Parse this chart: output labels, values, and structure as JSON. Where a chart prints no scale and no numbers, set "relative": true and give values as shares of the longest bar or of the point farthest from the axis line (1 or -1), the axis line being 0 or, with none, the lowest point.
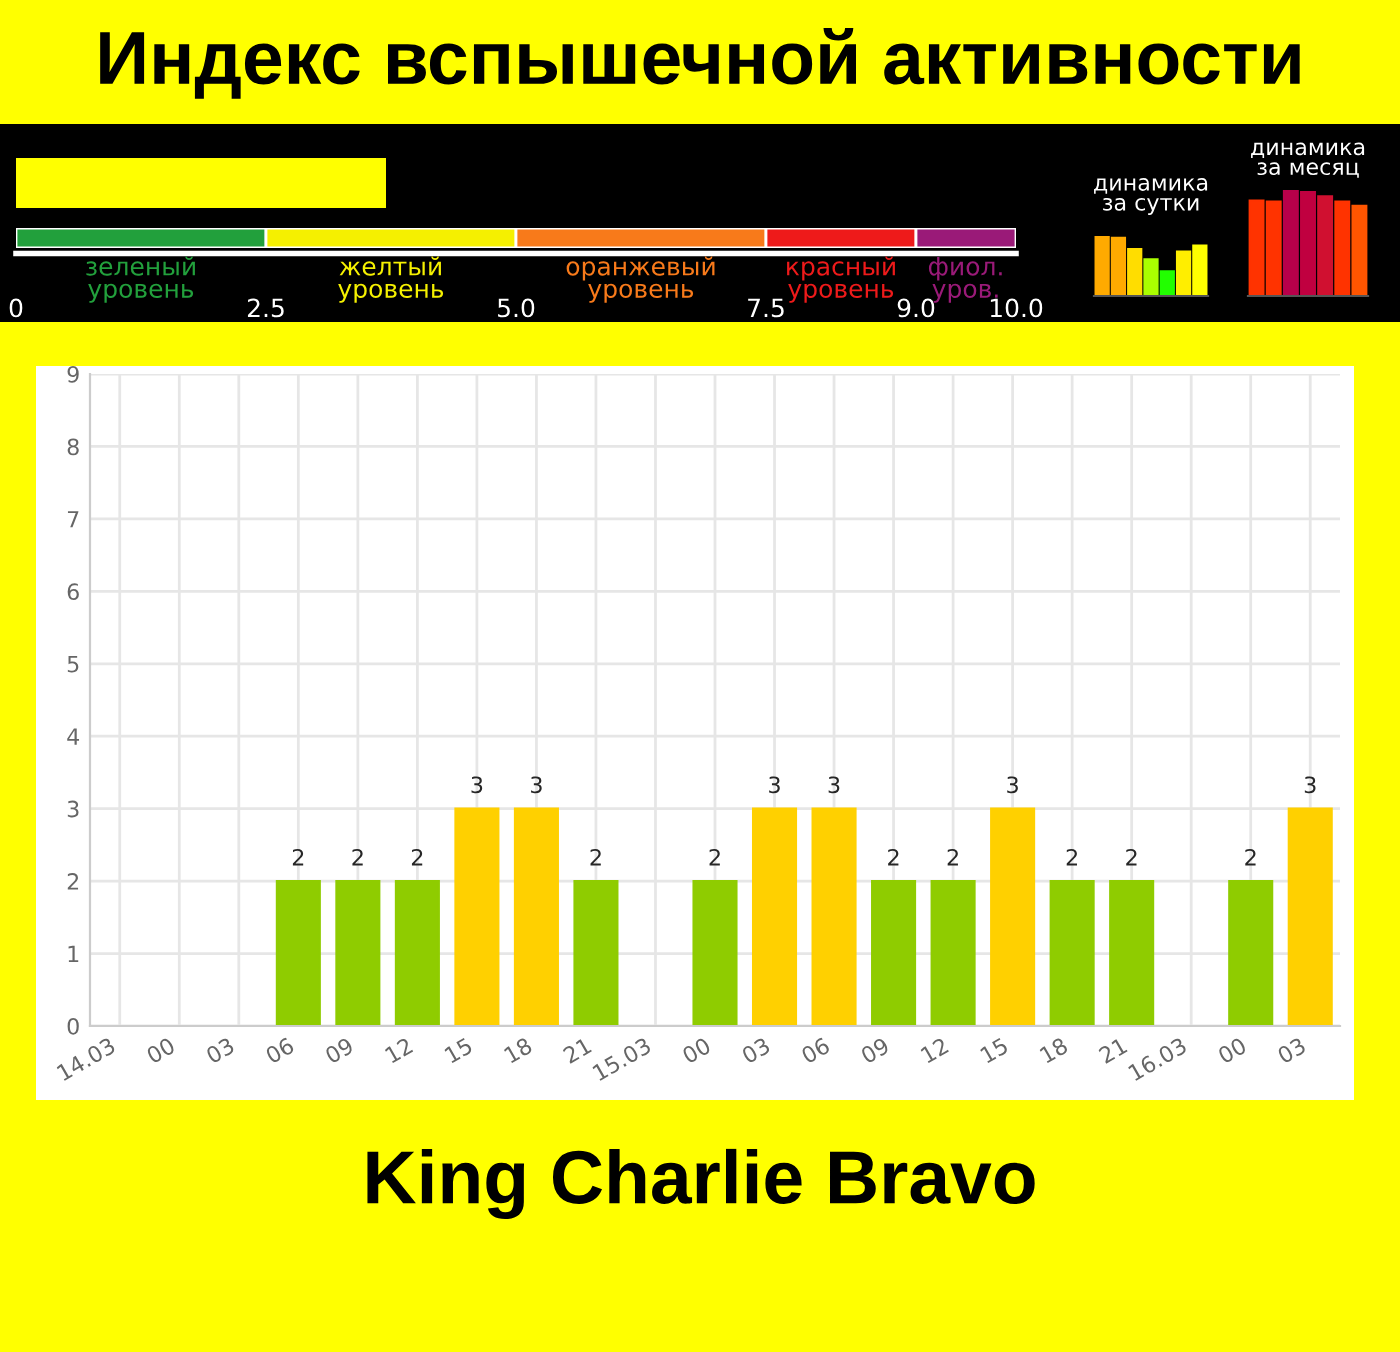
{
  "chart_data": [
    {
      "type": "bar",
      "orientation": "horizontal",
      "stacked": true,
      "title": "Индекс вспышечной активности",
      "categories": [
        null
      ],
      "xlim": [
        0,
        10
      ],
      "xticks": [
        0,
        {
          "value": 2.5,
          "label": "2.5"
        },
        {
          "value": 5,
          "label": "5.0"
        },
        {
          "value": 7.5,
          "label": "7.5"
        },
        {
          "value": 9,
          "label": "9.0"
        },
        {
          "value": 10,
          "label": "10.0"
        }
      ],
      "series": [
        {
          "name": "зеленый уровень",
          "color": "#22a03c",
          "values": [
            2.5
          ]
        },
        {
          "name": "желтый уровень",
          "color": "#f5f000",
          "values": [
            2.5
          ]
        },
        {
          "name": "оранжевый уровень",
          "color": "#f87a1a",
          "values": [
            2.5
          ]
        },
        {
          "name": "красный уровень",
          "color": "#ee1a1a",
          "values": [
            1.5
          ]
        },
        {
          "name": "фиол. уров.",
          "color": "#9a1a78",
          "values": [
            1
          ]
        }
      ]
    },
    {
      "type": "bar",
      "relative": true,
      "title": "динамика за сутки",
      "categories": [
        null,
        null,
        null,
        null,
        null,
        null,
        null
      ],
      "values": [
        1,
        0.97,
        0.78,
        0.61,
        0.41,
        0.74,
        0.84
      ],
      "colors": [
        "#ffaa00",
        "#ffaa00",
        "#ffdd00",
        "#aaff00",
        "#22ff00",
        "#ffee00",
        "#ffff00"
      ]
    },
    {
      "type": "bar",
      "relative": true,
      "title": "динамика за месяц",
      "categories": [
        null,
        null,
        null,
        null,
        null,
        null,
        null
      ],
      "values": [
        0.9,
        0.89,
        1,
        0.98,
        0.94,
        0.89,
        0.85
      ],
      "colors": [
        "#ff3300",
        "#ff3300",
        "#b8004a",
        "#c00040",
        "#d01030",
        "#ff3300",
        "#ff5500"
      ]
    },
    {
      "type": "bar",
      "categories": [
        "14.03",
        "00",
        "03",
        "06",
        "09",
        "12",
        "15",
        "18",
        "21",
        "15.03",
        "00",
        "03",
        "06",
        "09",
        "12",
        "15",
        "18",
        "21",
        "16.03",
        "00",
        "03"
      ],
      "values": [
        0,
        0,
        0,
        2,
        2,
        2,
        3,
        3,
        2,
        0,
        2,
        3,
        3,
        2,
        2,
        3,
        2,
        2,
        0,
        2,
        3
      ],
      "colors": [
        "#008000",
        "#008000",
        "#008000",
        "#8fcc00",
        "#8fcc00",
        "#8fcc00",
        "#ffd000",
        "#ffd000",
        "#8fcc00",
        "#008000",
        "#8fcc00",
        "#ffd000",
        "#ffd000",
        "#8fcc00",
        "#8fcc00",
        "#ffd000",
        "#8fcc00",
        "#8fcc00",
        "#008000",
        "#8fcc00",
        "#ffd000"
      ],
      "value_labels": [
        null,
        null,
        null,
        "2",
        "2",
        "2",
        "3",
        "3",
        "2",
        null,
        "2",
        "3",
        "3",
        "2",
        "2",
        "3",
        "2",
        "2",
        null,
        "2",
        "3"
      ],
      "ylim": [
        0,
        9
      ],
      "yticks": [
        0,
        1,
        2,
        3,
        4,
        5,
        6,
        7,
        8,
        9
      ],
      "grid": true,
      "annotations": [
        "King Charlie Bravo"
      ]
    }
  ]
}
